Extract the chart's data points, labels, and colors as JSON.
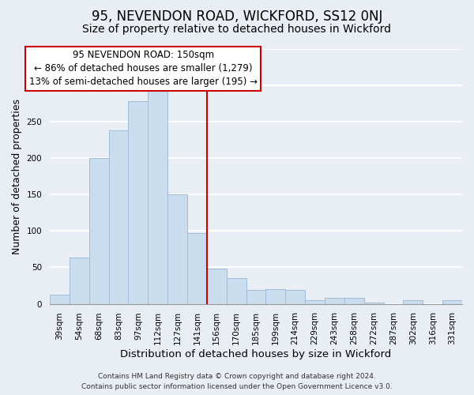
{
  "title": "95, NEVENDON ROAD, WICKFORD, SS12 0NJ",
  "subtitle": "Size of property relative to detached houses in Wickford",
  "xlabel": "Distribution of detached houses by size in Wickford",
  "ylabel": "Number of detached properties",
  "bar_labels": [
    "39sqm",
    "54sqm",
    "68sqm",
    "83sqm",
    "97sqm",
    "112sqm",
    "127sqm",
    "141sqm",
    "156sqm",
    "170sqm",
    "185sqm",
    "199sqm",
    "214sqm",
    "229sqm",
    "243sqm",
    "258sqm",
    "272sqm",
    "287sqm",
    "302sqm",
    "316sqm",
    "331sqm"
  ],
  "bar_heights": [
    13,
    64,
    200,
    238,
    278,
    293,
    150,
    97,
    48,
    35,
    19,
    20,
    19,
    5,
    8,
    8,
    2,
    0,
    5,
    0,
    5
  ],
  "bar_color": "#c9ddef",
  "bar_edge_color": "#a0bcd8",
  "vline_x": 7.5,
  "vline_color": "#cc0000",
  "ylim": [
    0,
    350
  ],
  "annotation_title": "95 NEVENDON ROAD: 150sqm",
  "annotation_line1": "← 86% of detached houses are smaller (1,279)",
  "annotation_line2": "13% of semi-detached houses are larger (195) →",
  "annotation_box_color": "#ffffff",
  "annotation_box_edge": "#cc0000",
  "footer_line1": "Contains HM Land Registry data © Crown copyright and database right 2024.",
  "footer_line2": "Contains public sector information licensed under the Open Government Licence v3.0.",
  "background_color": "#e8eef4",
  "grid_color": "#ffffff",
  "title_fontsize": 12,
  "subtitle_fontsize": 10,
  "label_fontsize": 9,
  "tick_fontsize": 7.5,
  "footer_fontsize": 6.5,
  "ann_fontsize": 8.5
}
